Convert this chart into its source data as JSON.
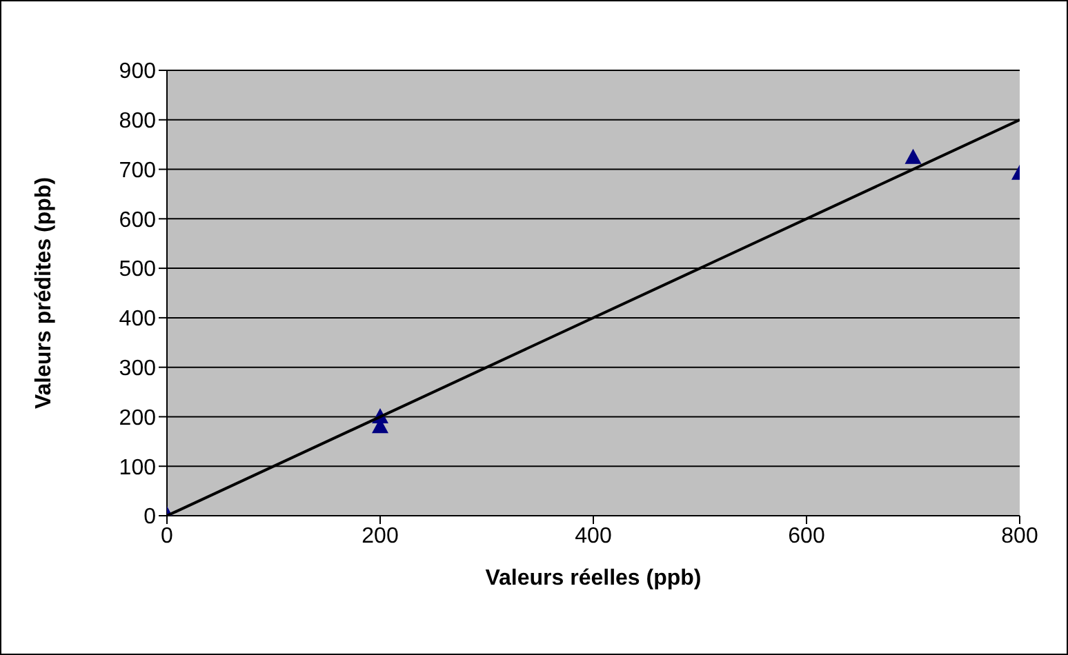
{
  "chart_data": {
    "type": "scatter",
    "xlabel": "Valeurs réelles (ppb)",
    "ylabel": "Valeurs prédites (ppb)",
    "xlim": [
      0,
      800
    ],
    "xticks": [
      0,
      200,
      400,
      600,
      800
    ],
    "ylim": [
      0,
      900
    ],
    "yticks": [
      0,
      100,
      200,
      300,
      400,
      500,
      600,
      700,
      800,
      900
    ],
    "grid": "y",
    "legend": false,
    "marker": "triangle",
    "series": [
      {
        "color": "#000080",
        "x": [
          0,
          200,
          200,
          700,
          800
        ],
        "values": [
          0,
          198,
          178,
          722,
          690
        ]
      },
      {
        "type": "line",
        "color": "#000000",
        "x": [
          0,
          800
        ],
        "values": [
          0,
          800
        ],
        "marker": "none",
        "line_style": "solid"
      }
    ]
  }
}
